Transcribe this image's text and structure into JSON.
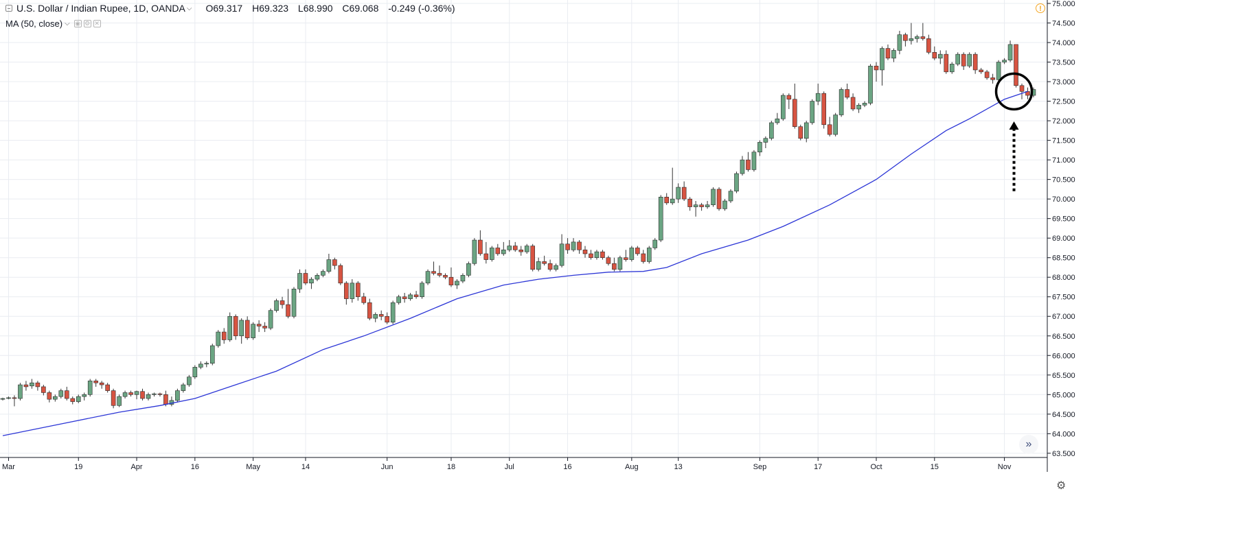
{
  "header": {
    "symbol": "U.S. Dollar / Indian Rupee, 1D, OANDA",
    "open": "O69.317",
    "high": "H69.323",
    "low": "L68.990",
    "close": "C69.068",
    "change": "-0.249 (-0.36%)"
  },
  "indicator": {
    "label": "MA (50, close)"
  },
  "icons": {
    "collapse": "collapse-square-icon",
    "dropdown": "chevron-down-icon",
    "warning": "warning-icon",
    "scroll": "double-chevron-right-icon",
    "settings": "gear-icon",
    "indicator_eye": "eye-icon",
    "indicator_settings": "settings-icon",
    "indicator_close": "close-icon"
  },
  "colors": {
    "up": "#6ba583",
    "down": "#d75442",
    "ma": "#2b35d6",
    "grid": "#e9ecf1",
    "annotation": "#000000"
  },
  "chart_data": {
    "type": "candlestick",
    "y_axis_ticks": [
      "75.000",
      "74.500",
      "74.000",
      "73.500",
      "73.000",
      "72.500",
      "72.000",
      "71.500",
      "71.000",
      "70.500",
      "70.000",
      "69.500",
      "69.000",
      "68.500",
      "68.000",
      "67.500",
      "67.000",
      "66.500",
      "66.000",
      "65.500",
      "65.000",
      "64.500",
      "64.000",
      "63.500"
    ],
    "ylim": [
      63.4,
      75.0
    ],
    "x_ticks": [
      {
        "label": "Mar",
        "i": 1
      },
      {
        "label": "19",
        "i": 13
      },
      {
        "label": "Apr",
        "i": 23
      },
      {
        "label": "16",
        "i": 33
      },
      {
        "label": "May",
        "i": 43
      },
      {
        "label": "14",
        "i": 52
      },
      {
        "label": "Jun",
        "i": 66
      },
      {
        "label": "18",
        "i": 77
      },
      {
        "label": "Jul",
        "i": 87
      },
      {
        "label": "16",
        "i": 97
      },
      {
        "label": "Aug",
        "i": 108
      },
      {
        "label": "13",
        "i": 116
      },
      {
        "label": "Sep",
        "i": 130
      },
      {
        "label": "17",
        "i": 140
      },
      {
        "label": "Oct",
        "i": 150
      },
      {
        "label": "15",
        "i": 160
      },
      {
        "label": "Nov",
        "i": 172
      }
    ],
    "ohlc": [
      [
        64.88,
        64.92,
        64.85,
        64.9
      ],
      [
        64.9,
        64.95,
        64.88,
        64.92
      ],
      [
        64.92,
        64.98,
        64.7,
        64.9
      ],
      [
        64.9,
        65.3,
        64.85,
        65.25
      ],
      [
        65.25,
        65.35,
        65.1,
        65.2
      ],
      [
        65.22,
        65.4,
        65.15,
        65.3
      ],
      [
        65.3,
        65.35,
        65.1,
        65.2
      ],
      [
        65.2,
        65.25,
        64.98,
        65.05
      ],
      [
        65.05,
        65.1,
        64.8,
        64.88
      ],
      [
        64.88,
        65.0,
        64.82,
        64.95
      ],
      [
        64.95,
        65.15,
        64.9,
        65.1
      ],
      [
        65.1,
        65.2,
        64.85,
        64.9
      ],
      [
        64.9,
        64.95,
        64.75,
        64.82
      ],
      [
        64.82,
        65.0,
        64.78,
        64.95
      ],
      [
        64.95,
        65.05,
        64.85,
        65.0
      ],
      [
        65.0,
        65.4,
        64.95,
        65.35
      ],
      [
        65.35,
        65.4,
        65.2,
        65.3
      ],
      [
        65.3,
        65.35,
        65.15,
        65.25
      ],
      [
        65.25,
        65.3,
        65.05,
        65.1
      ],
      [
        65.1,
        65.15,
        64.65,
        64.72
      ],
      [
        64.72,
        65.0,
        64.68,
        64.95
      ],
      [
        64.95,
        65.1,
        64.9,
        65.05
      ],
      [
        65.05,
        65.1,
        64.95,
        65.0
      ],
      [
        65.0,
        65.1,
        64.88,
        65.08
      ],
      [
        65.08,
        65.15,
        64.85,
        64.9
      ],
      [
        64.9,
        65.05,
        64.85,
        65.0
      ],
      [
        65.0,
        65.05,
        64.95,
        65.02
      ],
      [
        65.02,
        65.05,
        64.95,
        65.0
      ],
      [
        65.0,
        65.1,
        64.7,
        64.75
      ],
      [
        64.75,
        64.95,
        64.7,
        64.85
      ],
      [
        64.85,
        65.15,
        64.8,
        65.1
      ],
      [
        65.1,
        65.3,
        65.05,
        65.25
      ],
      [
        65.25,
        65.5,
        65.2,
        65.45
      ],
      [
        65.45,
        65.75,
        65.4,
        65.7
      ],
      [
        65.7,
        65.85,
        65.65,
        65.78
      ],
      [
        65.78,
        65.85,
        65.7,
        65.8
      ],
      [
        65.8,
        66.3,
        65.75,
        66.25
      ],
      [
        66.25,
        66.65,
        66.2,
        66.6
      ],
      [
        66.6,
        66.7,
        66.3,
        66.4
      ],
      [
        66.4,
        67.1,
        66.35,
        67.0
      ],
      [
        67.0,
        67.05,
        66.4,
        66.5
      ],
      [
        66.5,
        66.95,
        66.3,
        66.9
      ],
      [
        66.9,
        67.0,
        66.4,
        66.45
      ],
      [
        66.45,
        66.85,
        66.4,
        66.8
      ],
      [
        66.8,
        66.9,
        66.6,
        66.75
      ],
      [
        66.75,
        66.85,
        66.6,
        66.7
      ],
      [
        66.7,
        67.2,
        66.65,
        67.15
      ],
      [
        67.15,
        67.45,
        67.1,
        67.4
      ],
      [
        67.4,
        67.5,
        67.2,
        67.3
      ],
      [
        67.3,
        67.7,
        66.95,
        67.0
      ],
      [
        67.0,
        67.75,
        66.95,
        67.7
      ],
      [
        67.7,
        68.2,
        67.6,
        68.1
      ],
      [
        68.1,
        68.2,
        67.8,
        67.85
      ],
      [
        67.85,
        68.0,
        67.7,
        67.95
      ],
      [
        67.95,
        68.1,
        67.9,
        68.05
      ],
      [
        68.05,
        68.2,
        68.0,
        68.15
      ],
      [
        68.15,
        68.6,
        68.1,
        68.45
      ],
      [
        68.45,
        68.5,
        68.2,
        68.3
      ],
      [
        68.3,
        68.35,
        67.8,
        67.85
      ],
      [
        67.85,
        67.9,
        67.3,
        67.45
      ],
      [
        67.45,
        67.95,
        67.35,
        67.85
      ],
      [
        67.85,
        67.9,
        67.4,
        67.5
      ],
      [
        67.5,
        67.6,
        67.3,
        67.35
      ],
      [
        67.35,
        67.45,
        66.9,
        66.95
      ],
      [
        66.95,
        67.1,
        66.85,
        67.05
      ],
      [
        67.05,
        67.15,
        66.9,
        67.0
      ],
      [
        67.0,
        67.1,
        66.8,
        66.85
      ],
      [
        66.85,
        67.4,
        66.8,
        67.35
      ],
      [
        67.35,
        67.55,
        67.3,
        67.5
      ],
      [
        67.5,
        67.6,
        67.35,
        67.45
      ],
      [
        67.45,
        67.6,
        67.4,
        67.55
      ],
      [
        67.55,
        67.65,
        67.45,
        67.5
      ],
      [
        67.5,
        67.9,
        67.45,
        67.85
      ],
      [
        67.85,
        68.2,
        67.8,
        68.15
      ],
      [
        68.15,
        68.4,
        68.05,
        68.1
      ],
      [
        68.1,
        68.3,
        68.0,
        68.05
      ],
      [
        68.05,
        68.1,
        67.95,
        68.0
      ],
      [
        68.0,
        68.25,
        67.75,
        67.8
      ],
      [
        67.8,
        67.95,
        67.7,
        67.9
      ],
      [
        67.9,
        68.1,
        67.85,
        68.05
      ],
      [
        68.05,
        68.4,
        68.0,
        68.35
      ],
      [
        68.35,
        69.0,
        68.3,
        68.95
      ],
      [
        68.95,
        69.2,
        68.55,
        68.6
      ],
      [
        68.6,
        68.9,
        68.35,
        68.45
      ],
      [
        68.45,
        68.8,
        68.4,
        68.75
      ],
      [
        68.75,
        68.85,
        68.55,
        68.6
      ],
      [
        68.6,
        68.9,
        68.55,
        68.7
      ],
      [
        68.7,
        68.95,
        68.65,
        68.8
      ],
      [
        68.8,
        68.9,
        68.65,
        68.7
      ],
      [
        68.7,
        68.8,
        68.55,
        68.65
      ],
      [
        68.65,
        68.85,
        68.6,
        68.8
      ],
      [
        68.8,
        68.85,
        68.15,
        68.2
      ],
      [
        68.2,
        68.5,
        68.15,
        68.4
      ],
      [
        68.4,
        68.55,
        68.3,
        68.35
      ],
      [
        68.35,
        68.45,
        68.15,
        68.2
      ],
      [
        68.2,
        68.35,
        68.15,
        68.3
      ],
      [
        68.3,
        69.1,
        68.25,
        68.85
      ],
      [
        68.85,
        69.0,
        68.6,
        68.7
      ],
      [
        68.7,
        69.0,
        68.65,
        68.9
      ],
      [
        68.9,
        68.95,
        68.6,
        68.7
      ],
      [
        68.7,
        68.8,
        68.5,
        68.6
      ],
      [
        68.6,
        68.7,
        68.45,
        68.5
      ],
      [
        68.5,
        68.7,
        68.45,
        68.65
      ],
      [
        68.65,
        68.7,
        68.45,
        68.5
      ],
      [
        68.5,
        68.55,
        68.3,
        68.35
      ],
      [
        68.35,
        68.5,
        68.15,
        68.2
      ],
      [
        68.2,
        68.55,
        68.15,
        68.5
      ],
      [
        68.5,
        68.7,
        68.4,
        68.45
      ],
      [
        68.45,
        68.8,
        68.4,
        68.75
      ],
      [
        68.75,
        68.8,
        68.55,
        68.6
      ],
      [
        68.6,
        68.7,
        68.35,
        68.4
      ],
      [
        68.4,
        68.8,
        68.35,
        68.75
      ],
      [
        68.75,
        69.0,
        68.7,
        68.95
      ],
      [
        68.95,
        70.1,
        68.9,
        70.05
      ],
      [
        70.05,
        70.15,
        69.85,
        69.9
      ],
      [
        69.9,
        70.8,
        69.85,
        70.0
      ],
      [
        70.0,
        70.4,
        69.9,
        70.3
      ],
      [
        70.3,
        70.45,
        69.95,
        70.0
      ],
      [
        70.0,
        70.05,
        69.7,
        69.8
      ],
      [
        69.8,
        69.95,
        69.55,
        69.85
      ],
      [
        69.85,
        69.9,
        69.7,
        69.8
      ],
      [
        69.8,
        69.95,
        69.75,
        69.85
      ],
      [
        69.85,
        70.3,
        69.8,
        70.25
      ],
      [
        70.25,
        70.3,
        69.7,
        69.75
      ],
      [
        69.75,
        70.0,
        69.7,
        69.95
      ],
      [
        69.95,
        70.25,
        69.9,
        70.2
      ],
      [
        70.2,
        70.7,
        70.15,
        70.65
      ],
      [
        70.65,
        71.1,
        70.6,
        71.0
      ],
      [
        71.0,
        71.2,
        70.7,
        70.75
      ],
      [
        70.75,
        71.25,
        70.7,
        71.2
      ],
      [
        71.2,
        71.5,
        71.1,
        71.45
      ],
      [
        71.45,
        71.6,
        71.3,
        71.55
      ],
      [
        71.55,
        72.0,
        71.5,
        71.95
      ],
      [
        71.95,
        72.2,
        71.9,
        72.05
      ],
      [
        72.05,
        72.7,
        72.0,
        72.65
      ],
      [
        72.65,
        72.7,
        72.3,
        72.55
      ],
      [
        72.55,
        72.95,
        71.8,
        71.85
      ],
      [
        71.85,
        71.9,
        71.5,
        71.55
      ],
      [
        71.55,
        72.0,
        71.45,
        71.95
      ],
      [
        71.95,
        72.55,
        71.9,
        72.5
      ],
      [
        72.5,
        72.95,
        72.4,
        72.7
      ],
      [
        72.7,
        72.75,
        71.8,
        71.9
      ],
      [
        71.9,
        72.1,
        71.6,
        71.65
      ],
      [
        71.65,
        72.2,
        71.6,
        72.15
      ],
      [
        72.15,
        72.85,
        72.1,
        72.8
      ],
      [
        72.8,
        72.95,
        72.55,
        72.6
      ],
      [
        72.6,
        72.7,
        72.25,
        72.3
      ],
      [
        72.3,
        72.45,
        72.2,
        72.4
      ],
      [
        72.4,
        72.5,
        72.35,
        72.45
      ],
      [
        72.45,
        73.45,
        72.4,
        73.4
      ],
      [
        73.4,
        73.5,
        73.0,
        73.3
      ],
      [
        73.3,
        73.9,
        72.9,
        73.85
      ],
      [
        73.85,
        73.95,
        73.55,
        73.6
      ],
      [
        73.6,
        73.85,
        73.5,
        73.8
      ],
      [
        73.8,
        74.3,
        73.7,
        74.2
      ],
      [
        74.2,
        74.25,
        73.9,
        74.05
      ],
      [
        74.05,
        74.5,
        73.95,
        74.1
      ],
      [
        74.1,
        74.2,
        74.0,
        74.15
      ],
      [
        74.15,
        74.5,
        74.05,
        74.1
      ],
      [
        74.1,
        74.2,
        73.7,
        73.75
      ],
      [
        73.75,
        73.9,
        73.55,
        73.6
      ],
      [
        73.6,
        73.8,
        73.45,
        73.7
      ],
      [
        73.7,
        73.8,
        73.2,
        73.25
      ],
      [
        73.25,
        73.5,
        73.2,
        73.45
      ],
      [
        73.45,
        73.75,
        73.4,
        73.7
      ],
      [
        73.7,
        73.75,
        73.3,
        73.4
      ],
      [
        73.4,
        73.75,
        73.35,
        73.7
      ],
      [
        73.7,
        73.75,
        73.2,
        73.3
      ],
      [
        73.3,
        73.35,
        73.2,
        73.25
      ],
      [
        73.25,
        73.3,
        73.05,
        73.1
      ],
      [
        73.1,
        73.2,
        72.95,
        73.05
      ],
      [
        73.05,
        73.55,
        73.0,
        73.5
      ],
      [
        73.5,
        73.6,
        73.45,
        73.55
      ],
      [
        73.55,
        74.05,
        73.5,
        73.95
      ],
      [
        73.95,
        73.95,
        72.85,
        72.9
      ],
      [
        72.9,
        72.95,
        72.55,
        72.75
      ],
      [
        72.75,
        72.85,
        72.55,
        72.65
      ],
      [
        72.65,
        72.85,
        72.6,
        72.8
      ]
    ],
    "ma_series": {
      "name": "MA (50, close)",
      "points": [
        [
          0,
          63.95
        ],
        [
          10,
          64.25
        ],
        [
          20,
          64.55
        ],
        [
          27,
          64.72
        ],
        [
          33,
          64.9
        ],
        [
          40,
          65.25
        ],
        [
          47,
          65.6
        ],
        [
          55,
          66.15
        ],
        [
          62,
          66.5
        ],
        [
          70,
          66.95
        ],
        [
          78,
          67.45
        ],
        [
          86,
          67.8
        ],
        [
          92,
          67.95
        ],
        [
          98,
          68.05
        ],
        [
          104,
          68.13
        ],
        [
          110,
          68.15
        ],
        [
          114,
          68.25
        ],
        [
          120,
          68.6
        ],
        [
          128,
          68.95
        ],
        [
          134,
          69.3
        ],
        [
          142,
          69.85
        ],
        [
          150,
          70.5
        ],
        [
          156,
          71.15
        ],
        [
          162,
          71.75
        ],
        [
          166,
          72.05
        ],
        [
          172,
          72.55
        ],
        [
          176,
          72.75
        ]
      ]
    },
    "annotations": [
      {
        "type": "circle",
        "i": 174,
        "price": 72.75
      },
      {
        "type": "arrow",
        "i": 174,
        "from": 70.2,
        "to": 71.95
      }
    ]
  }
}
